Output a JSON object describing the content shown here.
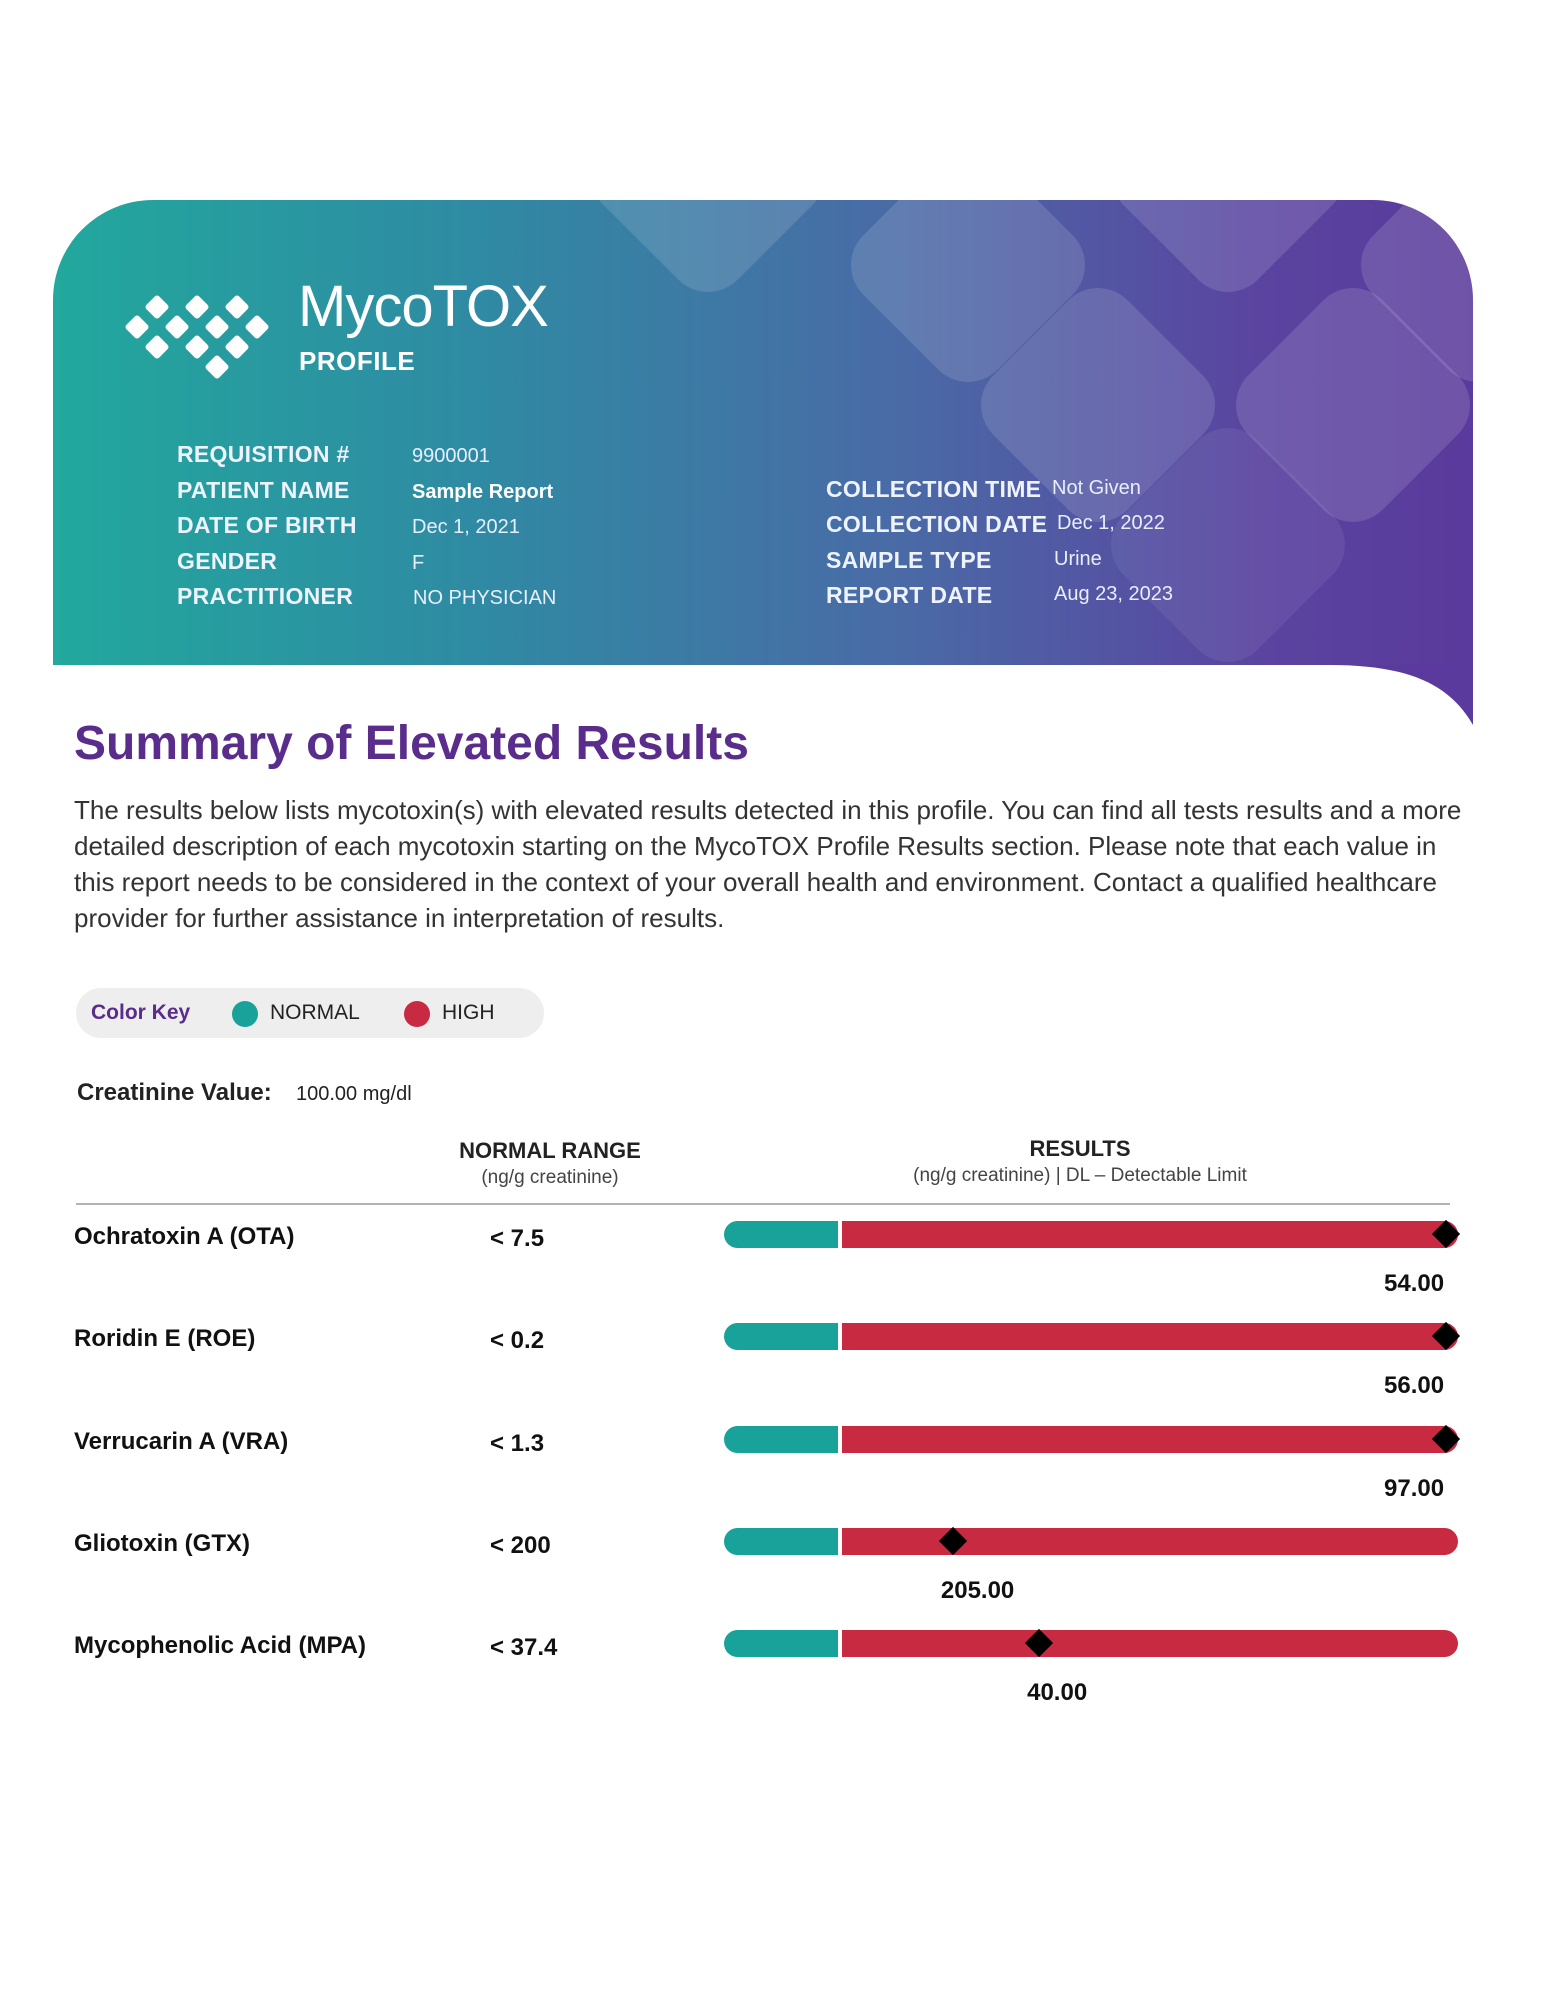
{
  "brand": {
    "name": "MycoTOX",
    "sub": "PROFILE"
  },
  "patient_info": {
    "left": [
      {
        "label": "REQUISITION #",
        "value": "9900001",
        "bold": false
      },
      {
        "label": "PATIENT NAME",
        "value": "Sample Report",
        "bold": true
      },
      {
        "label": "DATE OF BIRTH",
        "value": "Dec 1, 2021",
        "bold": false
      },
      {
        "label": "GENDER",
        "value": "F",
        "bold": false
      },
      {
        "label": "PRACTITIONER",
        "value": "NO PHYSICIAN",
        "bold": false
      }
    ],
    "right": [
      {
        "label": "COLLECTION TIME",
        "value": "Not Given"
      },
      {
        "label": "COLLECTION DATE",
        "value": "Dec 1, 2022"
      },
      {
        "label": "SAMPLE TYPE",
        "value": "Urine"
      },
      {
        "label": "REPORT DATE",
        "value": "Aug 23, 2023"
      }
    ]
  },
  "summary": {
    "title": "Summary of Elevated Results",
    "description": "The results below lists mycotoxin(s) with elevated results detected in this profile. You can find all tests results and a more detailed description of each mycotoxin starting on the MycoTOX Profile Results section. Please note that each value in this report needs to be considered in the context of your overall health and environment. Contact a qualified healthcare provider for further assistance in interpretation of results."
  },
  "color_key": {
    "label": "Color Key",
    "normal": "NORMAL",
    "high": "HIGH",
    "normal_color": "#18a29a",
    "high_color": "#c82a42",
    "label_color": "#5a2d8c"
  },
  "creatinine": {
    "label": "Creatinine Value:",
    "value": "100.00 mg/dl"
  },
  "table": {
    "normal_header": "NORMAL RANGE",
    "normal_sub": "(ng/g creatinine)",
    "results_header": "RESULTS",
    "results_sub": "(ng/g creatinine) | DL – Detectable Limit",
    "rows": [
      {
        "name": "Ochratoxin A (OTA)",
        "range": "< 7.5",
        "result": "54.00",
        "position": 0.98
      },
      {
        "name": "Roridin E (ROE)",
        "range": "< 0.2",
        "result": "56.00",
        "position": 0.98
      },
      {
        "name": "Verrucarin A (VRA)",
        "range": "< 1.3",
        "result": "97.00",
        "position": 0.98
      },
      {
        "name": "Gliotoxin (GTX)",
        "range": "< 200",
        "result": "205.00",
        "position": 0.18
      },
      {
        "name": "Mycophenolic Acid (MPA)",
        "range": "< 37.4",
        "result": "40.00",
        "position": 0.32
      }
    ]
  }
}
